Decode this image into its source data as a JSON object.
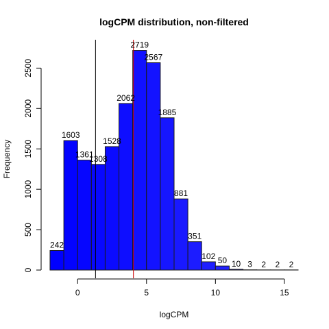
{
  "chart_data": {
    "type": "bar",
    "title": "logCPM distribution, non-filtered",
    "xlabel": "logCPM",
    "ylabel": "Frequency",
    "bins": [
      {
        "start": -2,
        "end": -1,
        "count": 242
      },
      {
        "start": -1,
        "end": 0,
        "count": 1603
      },
      {
        "start": 0,
        "end": 1,
        "count": 1361
      },
      {
        "start": 1,
        "end": 2,
        "count": 1308
      },
      {
        "start": 2,
        "end": 3,
        "count": 1528
      },
      {
        "start": 3,
        "end": 4,
        "count": 2062
      },
      {
        "start": 4,
        "end": 5,
        "count": 2719
      },
      {
        "start": 5,
        "end": 6,
        "count": 2567
      },
      {
        "start": 6,
        "end": 7,
        "count": 1885
      },
      {
        "start": 7,
        "end": 8,
        "count": 881
      },
      {
        "start": 8,
        "end": 9,
        "count": 351
      },
      {
        "start": 9,
        "end": 10,
        "count": 102
      },
      {
        "start": 10,
        "end": 11,
        "count": 50
      },
      {
        "start": 11,
        "end": 12,
        "count": 10
      },
      {
        "start": 12,
        "end": 13,
        "count": 3
      },
      {
        "start": 13,
        "end": 14,
        "count": 2
      },
      {
        "start": 14,
        "end": 15,
        "count": 2
      },
      {
        "start": 15,
        "end": 16,
        "count": 2
      }
    ],
    "xticks": [
      0,
      5,
      10,
      15
    ],
    "yticks": [
      0,
      500,
      1000,
      1500,
      2000,
      2500
    ],
    "xlim": [
      -2,
      16
    ],
    "ylim": [
      0,
      2800
    ],
    "vlines": [
      {
        "x": 1.3,
        "color": "#000000"
      },
      {
        "x": 4.05,
        "color": "#cc0000"
      }
    ],
    "colors": {
      "gradient_start": "#0000ff",
      "gradient_end": "#2f2fff",
      "bar_border": "#1a1a1a"
    }
  }
}
